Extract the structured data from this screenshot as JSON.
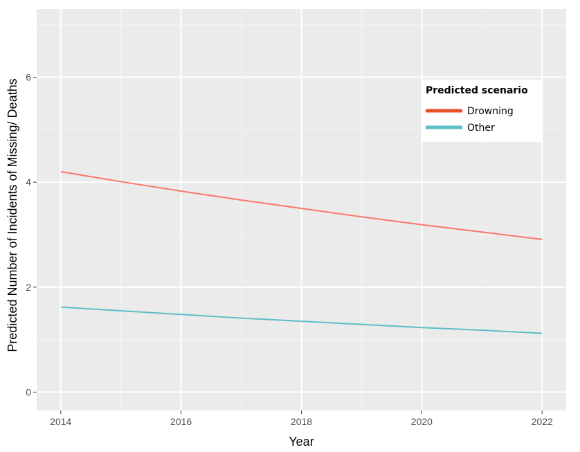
{
  "chart_data": {
    "type": "line",
    "xlabel": "Year",
    "ylabel": "Predicted Number of Incidents of Missing/ Deaths",
    "xlim": [
      2013.6,
      2022.4
    ],
    "ylim": [
      -0.35,
      7.3
    ],
    "x_ticks": [
      2014,
      2016,
      2018,
      2020,
      2022
    ],
    "x_minor": [
      2015,
      2017,
      2019,
      2021
    ],
    "y_ticks": [
      0,
      2,
      4,
      6
    ],
    "y_minor": [
      1,
      3,
      5,
      7
    ],
    "grid": true,
    "legend": {
      "title": "Predicted scenario",
      "position": "top-right"
    },
    "series": [
      {
        "name": "Drowning",
        "color": "#F8766D",
        "legend_color": "#E8502A",
        "x": [
          2014,
          2015,
          2016,
          2017,
          2018,
          2019,
          2020,
          2021,
          2022
        ],
        "y": [
          4.2,
          4.01,
          3.83,
          3.66,
          3.5,
          3.34,
          3.19,
          3.05,
          2.91
        ]
      },
      {
        "name": "Other",
        "color": "#5BBFC7",
        "legend_color": "#5BBFC7",
        "x": [
          2014,
          2015,
          2016,
          2017,
          2018,
          2019,
          2020,
          2021,
          2022
        ],
        "y": [
          1.62,
          1.55,
          1.48,
          1.41,
          1.35,
          1.29,
          1.23,
          1.18,
          1.12
        ]
      }
    ]
  }
}
